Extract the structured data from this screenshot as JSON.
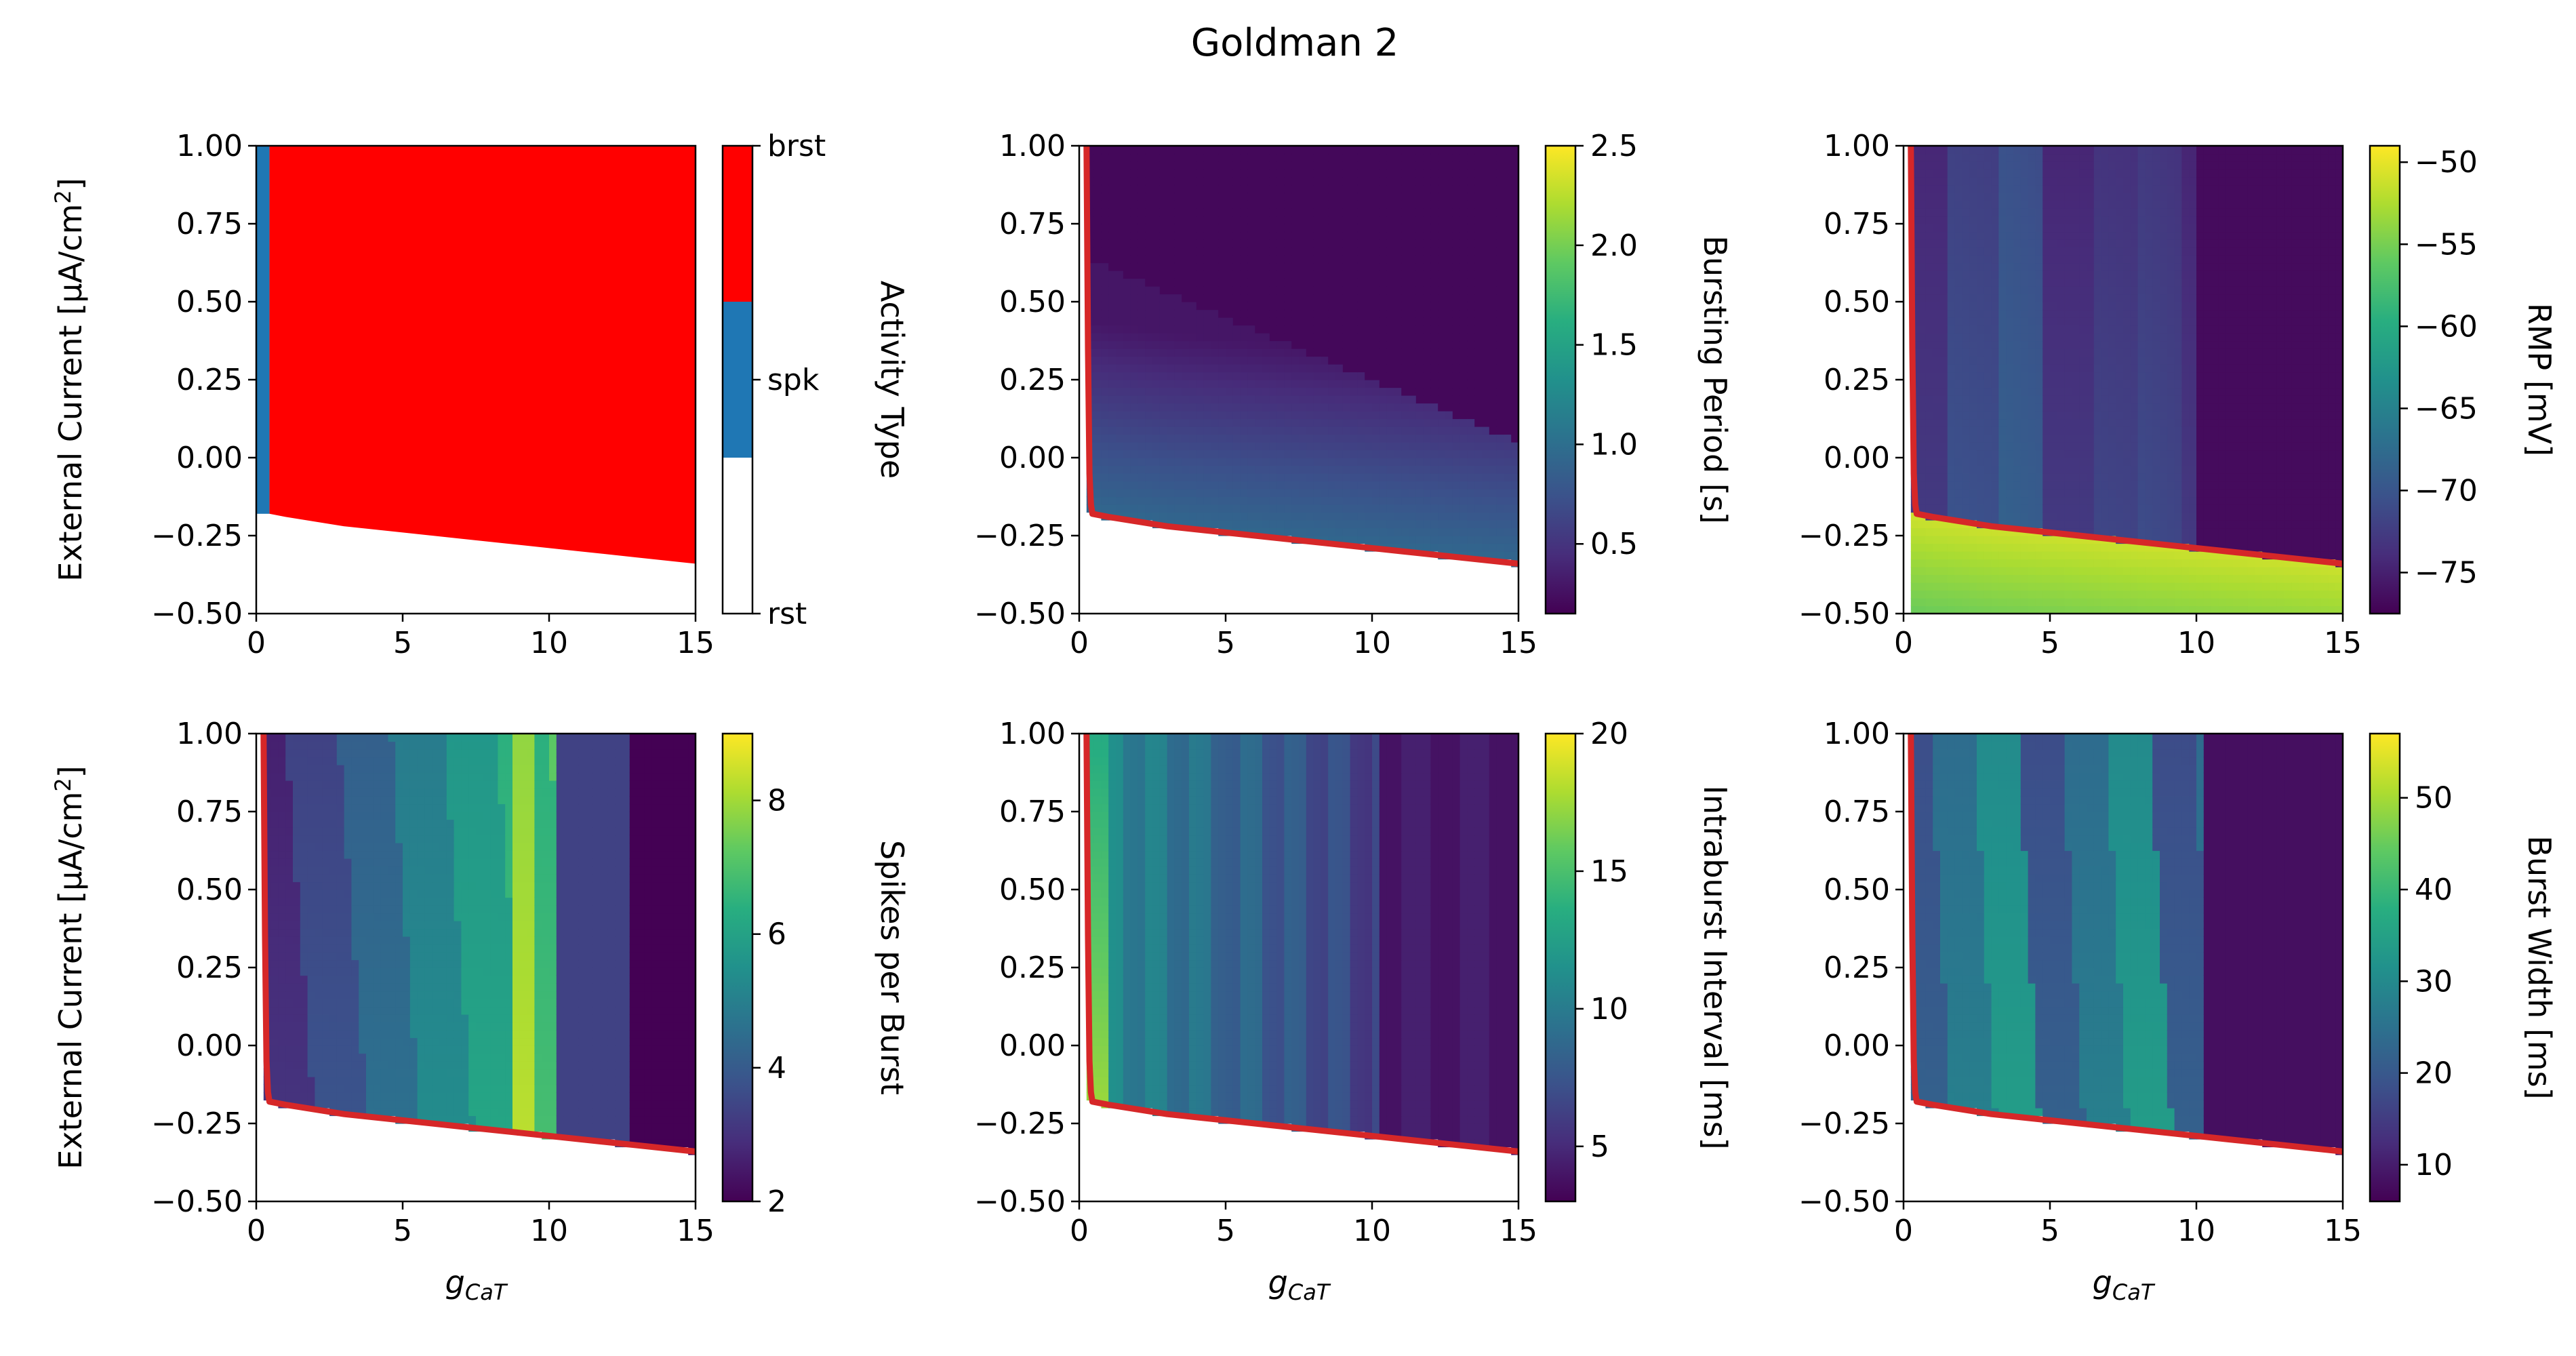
{
  "figure": {
    "title": "Goldman 2"
  },
  "chart_data": [
    {
      "type": "heatmap",
      "panel": "activity-type",
      "xlabel_main": "g",
      "xlabel_sub": "CaT",
      "ylabel_main": "External Current [μA/cm",
      "ylabel_sup": "2",
      "ylabel_end": "]",
      "xlim": [
        0,
        15
      ],
      "ylim": [
        -0.5,
        1.0
      ],
      "xticks": [
        "0",
        "5",
        "10",
        "15"
      ],
      "yticks": [
        "−0.50",
        "−0.25",
        "0.00",
        "0.25",
        "0.50",
        "0.75",
        "1.00"
      ],
      "colorbar": {
        "label": "Activity Type",
        "kind": "categorical",
        "categories": [
          "rst",
          "spk",
          "brst"
        ],
        "colors": [
          "#ffffff",
          "#1f77b4",
          "#ff0000"
        ],
        "ticks": [
          "rst",
          "spk",
          "brst"
        ]
      },
      "regions": [
        {
          "category": "rst",
          "description_extent": "below boundary"
        },
        {
          "category": "spk",
          "x": [
            0.0,
            0.45
          ],
          "y": [
            -0.18,
            1.0
          ]
        },
        {
          "category": "brst",
          "x": [
            0.45,
            15.0
          ]
        }
      ],
      "boundary": [
        [
          0.0,
          -0.18
        ],
        [
          0.45,
          -0.18
        ],
        [
          1,
          -0.19
        ],
        [
          3,
          -0.22
        ],
        [
          5,
          -0.24
        ],
        [
          7,
          -0.26
        ],
        [
          9,
          -0.28
        ],
        [
          11,
          -0.3
        ],
        [
          13,
          -0.32
        ],
        [
          15,
          -0.34
        ]
      ]
    },
    {
      "type": "heatmap",
      "panel": "bursting-period",
      "xlabel_main": "g",
      "xlabel_sub": "CaT",
      "xlim": [
        0,
        15
      ],
      "ylim": [
        -0.5,
        1.0
      ],
      "xticks": [
        "0",
        "5",
        "10",
        "15"
      ],
      "yticks": [
        "−0.50",
        "−0.25",
        "0.00",
        "0.25",
        "0.50",
        "0.75",
        "1.00"
      ],
      "colorbar": {
        "label": "Bursting Period [s]",
        "kind": "viridis",
        "range": [
          0.15,
          2.5
        ],
        "ticks": [
          "0.5",
          "1.0",
          "1.5",
          "2.0",
          "2.5"
        ],
        "tick_values": [
          0.5,
          1.0,
          1.5,
          2.0,
          2.5
        ]
      },
      "notes": "low period (~0.15-0.3 s) across most of the region; higher (~0.8-1.0 s) near the lower boundary"
    },
    {
      "type": "heatmap",
      "panel": "rmp",
      "xlabel_main": "g",
      "xlabel_sub": "CaT",
      "xlim": [
        0,
        15
      ],
      "ylim": [
        -0.5,
        1.0
      ],
      "xticks": [
        "0",
        "5",
        "10",
        "15"
      ],
      "yticks": [
        "−0.50",
        "−0.25",
        "0.00",
        "0.25",
        "0.50",
        "0.75",
        "1.00"
      ],
      "colorbar": {
        "label": "RMP [mV]",
        "kind": "viridis",
        "range": [
          -77.5,
          -49
        ],
        "ticks": [
          "−75",
          "−70",
          "−65",
          "−60",
          "−55",
          "−50"
        ],
        "tick_values": [
          -75,
          -70,
          -65,
          -60,
          -55,
          -50
        ]
      },
      "notes": "around -70 to -76 mV in burst region; ~-50 to -53 mV in the resting band below the boundary"
    },
    {
      "type": "heatmap",
      "panel": "spikes-per-burst",
      "xlabel_main": "g",
      "xlabel_sub": "CaT",
      "ylabel_main": "External Current [μA/cm",
      "ylabel_sup": "2",
      "ylabel_end": "]",
      "xlim": [
        0,
        15
      ],
      "ylim": [
        -0.5,
        1.0
      ],
      "xticks": [
        "0",
        "5",
        "10",
        "15"
      ],
      "yticks": [
        "−0.50",
        "−0.25",
        "0.00",
        "0.25",
        "0.50",
        "0.75",
        "1.00"
      ],
      "colorbar": {
        "label": "Spikes per Burst",
        "kind": "viridis",
        "range": [
          2,
          9
        ],
        "ticks": [
          "2",
          "4",
          "6",
          "8"
        ],
        "tick_values": [
          2,
          4,
          6,
          8
        ]
      },
      "notes": "banded values from 2 to 9; highest (~8-9) around g_CaT 8.5-10"
    },
    {
      "type": "heatmap",
      "panel": "intraburst-interval",
      "xlabel_main": "g",
      "xlabel_sub": "CaT",
      "xlim": [
        0,
        15
      ],
      "ylim": [
        -0.5,
        1.0
      ],
      "xticks": [
        "0",
        "5",
        "10",
        "15"
      ],
      "yticks": [
        "−0.50",
        "−0.25",
        "0.00",
        "0.25",
        "0.50",
        "0.75",
        "1.00"
      ],
      "colorbar": {
        "label": "Intraburst Interval [ms]",
        "kind": "viridis",
        "range": [
          3,
          20
        ],
        "ticks": [
          "5",
          "10",
          "15",
          "20"
        ],
        "tick_values": [
          5,
          10,
          15,
          20
        ]
      },
      "notes": "highest (~17-20 ms) near the left boundary at small g_CaT, mostly 4-9 ms elsewhere"
    },
    {
      "type": "heatmap",
      "panel": "burst-width",
      "xlabel_main": "g",
      "xlabel_sub": "CaT",
      "xlim": [
        0,
        15
      ],
      "ylim": [
        -0.5,
        1.0
      ],
      "xticks": [
        "0",
        "5",
        "10",
        "15"
      ],
      "yticks": [
        "−0.50",
        "−0.25",
        "0.00",
        "0.25",
        "0.50",
        "0.75",
        "1.00"
      ],
      "colorbar": {
        "label": "Burst Width [ms]",
        "kind": "viridis",
        "range": [
          6,
          57
        ],
        "ticks": [
          "10",
          "20",
          "30",
          "40",
          "50"
        ],
        "tick_values": [
          10,
          20,
          30,
          40,
          50
        ]
      },
      "notes": "mostly 15-35 ms in the burst region; ~8-10 ms for g_CaT above 10"
    }
  ]
}
